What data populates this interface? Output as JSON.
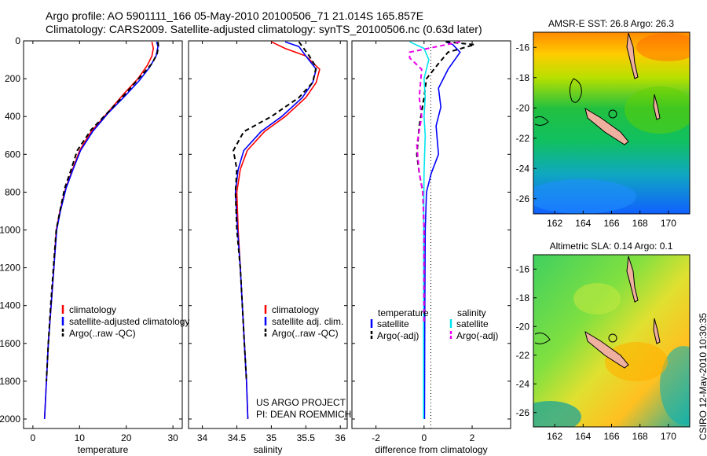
{
  "header": {
    "line1": "Argo profile: AO 5901111_166 05-May-2010 20100506_71 21.014S 165.857E",
    "line2": "Climatology: CARS2009. Satellite-adjusted climatology: synTS_20100506.nc (0.63d later)"
  },
  "credit": {
    "line1": "US ARGO PROJECT",
    "line2": "PI: DEAN ROEMMICH"
  },
  "stamp": "CSIRO 12-May-2010 10:30:35",
  "colors": {
    "climatology": "#ff0000",
    "satellite": "#0000ff",
    "argo": "#000000",
    "temp_sat": "#0000ff",
    "sal_sat": "#00e5ee",
    "sal_argo": "#ee00ee"
  },
  "chart_data": [
    {
      "type": "line",
      "id": "temperature",
      "xlabel": "temperature",
      "xlim": [
        -2,
        32
      ],
      "xticks": [
        0,
        10,
        20,
        30
      ],
      "ylim": [
        2050,
        0
      ],
      "yticks": [
        0,
        200,
        400,
        600,
        800,
        1000,
        1200,
        1400,
        1600,
        1800,
        2000
      ],
      "legend": {
        "placement": "lower-right",
        "entries": [
          "climatology",
          "satellite-adjusted climatology",
          "Argo(..raw -QC)"
        ]
      },
      "series": [
        {
          "name": "climatology",
          "style": "solid",
          "points": [
            [
              25.5,
              5
            ],
            [
              25.8,
              40
            ],
            [
              25.5,
              80
            ],
            [
              24.5,
              130
            ],
            [
              22.5,
              200
            ],
            [
              19.5,
              280
            ],
            [
              16,
              380
            ],
            [
              12.5,
              480
            ],
            [
              10,
              580
            ],
            [
              8.5,
              680
            ],
            [
              7,
              780
            ],
            [
              5.8,
              900
            ],
            [
              5,
              1000
            ],
            [
              4.5,
              1200
            ],
            [
              3.9,
              1400
            ],
            [
              3.3,
              1600
            ],
            [
              2.9,
              1800
            ],
            [
              2.5,
              2000
            ]
          ]
        },
        {
          "name": "satellite-adjusted climatology",
          "style": "solid",
          "points": [
            [
              26.5,
              5
            ],
            [
              26.8,
              30
            ],
            [
              26.4,
              80
            ],
            [
              25,
              140
            ],
            [
              22.8,
              210
            ],
            [
              19.8,
              290
            ],
            [
              16.2,
              380
            ],
            [
              12.8,
              480
            ],
            [
              10.2,
              580
            ],
            [
              8.6,
              680
            ],
            [
              7.1,
              780
            ],
            [
              5.9,
              900
            ],
            [
              5.1,
              1000
            ],
            [
              4.5,
              1200
            ],
            [
              3.9,
              1400
            ],
            [
              3.3,
              1600
            ],
            [
              2.9,
              1800
            ],
            [
              2.5,
              2000
            ]
          ]
        },
        {
          "name": "Argo(..raw -QC)",
          "style": "dashed",
          "points": [
            [
              26.8,
              5
            ],
            [
              26.9,
              30
            ],
            [
              26.6,
              70
            ],
            [
              25.5,
              120
            ],
            [
              23,
              190
            ],
            [
              20.2,
              270
            ],
            [
              16,
              380
            ],
            [
              12.5,
              470
            ],
            [
              9.5,
              580
            ],
            [
              8.2,
              680
            ],
            [
              6.8,
              780
            ],
            [
              5.8,
              900
            ],
            [
              5,
              1000
            ],
            [
              4.4,
              1200
            ],
            [
              3.8,
              1400
            ],
            [
              3.3,
              1600
            ],
            [
              2.9,
              1800
            ]
          ]
        }
      ]
    },
    {
      "type": "line",
      "id": "salinity",
      "xlabel": "salinity",
      "xlim": [
        33.8,
        36.1
      ],
      "xticks": [
        34,
        34.5,
        35,
        35.5,
        36
      ],
      "ylim": [
        2050,
        0
      ],
      "legend": {
        "placement": "lower-right",
        "entries": [
          "climatology",
          "satellite adj. clim.",
          "Argo(..raw -QC)"
        ]
      },
      "series": [
        {
          "name": "climatology",
          "style": "solid",
          "points": [
            [
              35,
              5
            ],
            [
              35.2,
              40
            ],
            [
              35.5,
              80
            ],
            [
              35.7,
              150
            ],
            [
              35.65,
              220
            ],
            [
              35.5,
              300
            ],
            [
              35.2,
              400
            ],
            [
              34.9,
              480
            ],
            [
              34.65,
              580
            ],
            [
              34.55,
              680
            ],
            [
              34.5,
              800
            ],
            [
              34.52,
              1000
            ],
            [
              34.55,
              1200
            ],
            [
              34.58,
              1400
            ],
            [
              34.61,
              1600
            ],
            [
              34.64,
              1800
            ],
            [
              34.66,
              2000
            ]
          ]
        },
        {
          "name": "satellite adj. clim.",
          "style": "solid",
          "points": [
            [
              35.2,
              5
            ],
            [
              35.4,
              30
            ],
            [
              35.5,
              80
            ],
            [
              35.65,
              150
            ],
            [
              35.6,
              220
            ],
            [
              35.45,
              300
            ],
            [
              35.15,
              400
            ],
            [
              34.85,
              480
            ],
            [
              34.6,
              580
            ],
            [
              34.52,
              680
            ],
            [
              34.48,
              800
            ],
            [
              34.51,
              1000
            ],
            [
              34.55,
              1200
            ],
            [
              34.58,
              1400
            ],
            [
              34.61,
              1600
            ],
            [
              34.64,
              1800
            ],
            [
              34.66,
              2000
            ]
          ]
        },
        {
          "name": "Argo(..raw -QC)",
          "style": "dashed",
          "points": [
            [
              35.4,
              5
            ],
            [
              35.45,
              30
            ],
            [
              35.55,
              80
            ],
            [
              35.65,
              140
            ],
            [
              35.6,
              220
            ],
            [
              35.4,
              300
            ],
            [
              35.0,
              400
            ],
            [
              34.6,
              480
            ],
            [
              34.45,
              580
            ],
            [
              34.5,
              680
            ],
            [
              34.48,
              800
            ],
            [
              34.5,
              1000
            ],
            [
              34.55,
              1200
            ],
            [
              34.58,
              1400
            ],
            [
              34.61,
              1600
            ],
            [
              34.64,
              1800
            ]
          ]
        }
      ]
    },
    {
      "type": "line",
      "id": "difference",
      "xlabel": "difference from climatology",
      "xlim": [
        -3,
        3.6
      ],
      "xticks": [
        -2,
        0,
        2
      ],
      "ylim": [
        2050,
        0
      ],
      "legend": {
        "placement": "lower",
        "headers": [
          "temperature",
          "salinity"
        ],
        "entries": [
          "satellite",
          "Argo(-adj)",
          "satellite",
          "Argo(-adj)"
        ]
      },
      "series": [
        {
          "name": "temperature satellite",
          "style": "solid",
          "points": [
            [
              0.9,
              5
            ],
            [
              1.2,
              20
            ],
            [
              1.5,
              60
            ],
            [
              1.0,
              150
            ],
            [
              0.6,
              250
            ],
            [
              0.7,
              350
            ],
            [
              0.5,
              450
            ],
            [
              0.6,
              600
            ],
            [
              0.3,
              700
            ],
            [
              0.1,
              800
            ],
            [
              0.05,
              1000
            ],
            [
              0.03,
              1500
            ],
            [
              0.02,
              2000
            ]
          ]
        },
        {
          "name": "temperature Argo(-adj)",
          "style": "dashed",
          "points": [
            [
              0.9,
              5
            ],
            [
              2.1,
              20
            ],
            [
              1.0,
              60
            ],
            [
              0.6,
              120
            ],
            [
              0.1,
              200
            ],
            [
              0.0,
              300
            ],
            [
              -0.2,
              450
            ],
            [
              -0.3,
              600
            ],
            [
              -0.2,
              700
            ],
            [
              -0.05,
              800
            ],
            [
              0.0,
              1000
            ],
            [
              0.0,
              1500
            ]
          ]
        },
        {
          "name": "salinity satellite",
          "style": "solid",
          "points": [
            [
              -0.6,
              5
            ],
            [
              0.0,
              40
            ],
            [
              0.2,
              100
            ],
            [
              0.0,
              200
            ],
            [
              0.05,
              300
            ],
            [
              0.0,
              400
            ],
            [
              0.05,
              500
            ],
            [
              0.0,
              700
            ],
            [
              -0.02,
              1000
            ],
            [
              -0.02,
              1500
            ],
            [
              -0.02,
              2000
            ]
          ]
        },
        {
          "name": "salinity Argo(-adj)",
          "style": "dashed",
          "points": [
            [
              1.5,
              5
            ],
            [
              -0.6,
              60
            ],
            [
              -0.6,
              90
            ],
            [
              -0.1,
              150
            ],
            [
              -0.2,
              300
            ],
            [
              -0.1,
              400
            ],
            [
              -0.3,
              550
            ],
            [
              -0.2,
              700
            ],
            [
              -0.05,
              800
            ],
            [
              0.0,
              1000
            ],
            [
              0.0,
              1500
            ]
          ]
        }
      ]
    },
    {
      "type": "heatmap",
      "id": "sst",
      "title": "AMSR-E SST: 26.8 Argo: 26.3",
      "xticks": [
        162,
        164,
        166,
        168,
        170
      ],
      "yticks": [
        -16,
        -18,
        -20,
        -22,
        -24,
        -26
      ],
      "xlim": [
        160.5,
        171.5
      ],
      "ylim": [
        -27,
        -15
      ]
    },
    {
      "type": "heatmap",
      "id": "sla",
      "title": "Altimetric SLA: 0.14 Argo: 0.1",
      "xticks": [
        162,
        164,
        166,
        168,
        170
      ],
      "yticks": [
        -16,
        -18,
        -20,
        -22,
        -24,
        -26
      ],
      "xlim": [
        160.5,
        171.5
      ],
      "ylim": [
        -27,
        -15
      ]
    }
  ]
}
